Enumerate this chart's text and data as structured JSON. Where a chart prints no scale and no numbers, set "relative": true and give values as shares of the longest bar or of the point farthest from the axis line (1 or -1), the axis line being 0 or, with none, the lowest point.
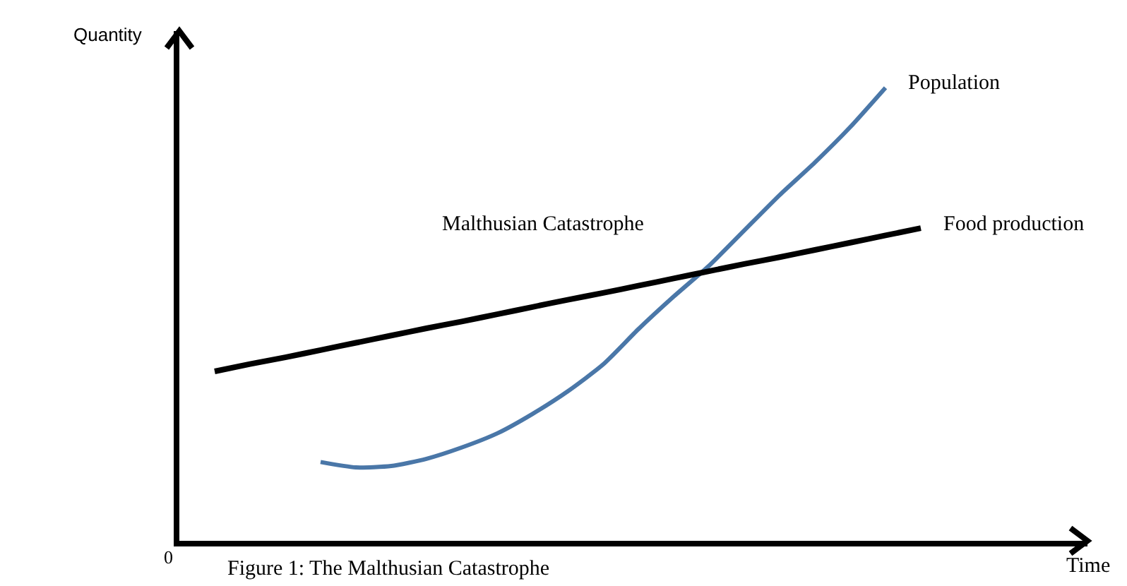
{
  "chart_data": {
    "type": "line",
    "relative": true,
    "xlabel": "Time",
    "ylabel": "Quantity",
    "legend": false,
    "marker": "none",
    "line_style": "solid",
    "categories": [
      null,
      null,
      null,
      null,
      null,
      null,
      null,
      null,
      null,
      null,
      null,
      null,
      null,
      null,
      null,
      null,
      null,
      null,
      null,
      null,
      null,
      null,
      null,
      null,
      null,
      null
    ],
    "series": [
      {
        "name": "Population",
        "color": "#4a77a8",
        "values": [
          null,
          null,
          null,
          null,
          0.174,
          0.162,
          0.165,
          0.181,
          0.206,
          0.237,
          0.28,
          0.33,
          0.389,
          0.467,
          0.539,
          0.607,
          0.685,
          0.763,
          0.835,
          0.913,
          1.0,
          null,
          null,
          null,
          null,
          null
        ]
      },
      {
        "name": "Food production",
        "color": "#000000",
        "values": [
          null,
          0.374,
          0.39,
          0.405,
          0.421,
          0.437,
          0.453,
          0.469,
          0.484,
          0.5,
          0.516,
          0.532,
          0.547,
          0.563,
          0.579,
          0.595,
          0.611,
          0.626,
          0.642,
          0.658,
          0.674,
          0.69,
          null,
          null,
          null,
          null
        ]
      }
    ],
    "annotations": [
      "0",
      "Malthusian Catastrophe",
      "Figure 1: The Malthusian Catastrophe"
    ]
  }
}
